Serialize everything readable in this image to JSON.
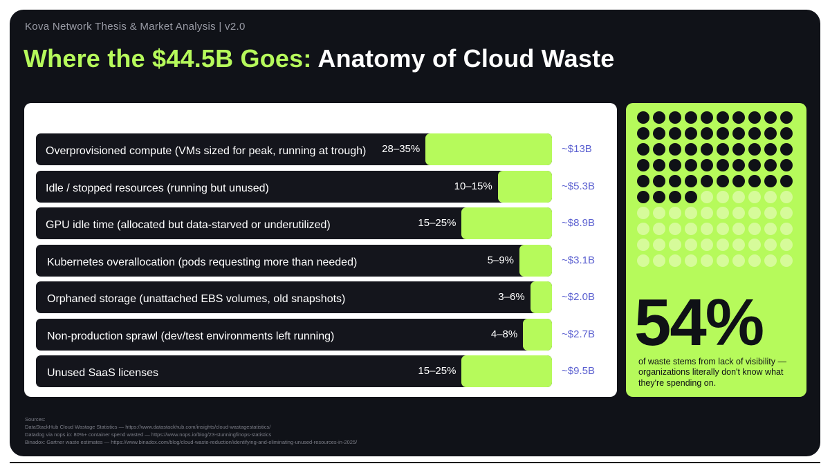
{
  "header": {
    "subtitle": "Kova Network Thesis & Market Analysis | v2.0",
    "title_accent": "Where the $44.5B Goes:",
    "title_main": "Anatomy of Cloud Waste"
  },
  "colors": {
    "background": "#101218",
    "accent": "#b6fa5b",
    "bar_track": "#14151c",
    "amount_text": "#5a5fd0"
  },
  "chart_data": {
    "type": "bar",
    "orientation": "horizontal",
    "categories": [
      "Overprovisioned compute (VMs sized for peak, running at trough)",
      "Idle / stopped resources (running but unused)",
      "GPU idle time (allocated but data-starved or underutilized)",
      "Kubernetes overallocation (pods requesting more than needed)",
      "Orphaned storage (unattached EBS volumes, old snapshots)",
      "Non-production sprawl (dev/test environments left running)",
      "Unused SaaS licenses"
    ],
    "percent_labels": [
      "28–35%",
      "10–15%",
      "15–25%",
      "5–9%",
      "3–6%",
      "4–8%",
      "15–25%"
    ],
    "percent_low": [
      28,
      10,
      15,
      5,
      3,
      4,
      15
    ],
    "percent_high": [
      35,
      15,
      25,
      9,
      6,
      8,
      25
    ],
    "amount_labels": [
      "~$13B",
      "~$5.3B",
      "~$8.9B",
      "~$3.1B",
      "~$2.0B",
      "~$2.7B",
      "~$9.5B"
    ],
    "amount_values_billion": [
      13,
      5.3,
      8.9,
      3.1,
      2.0,
      2.7,
      9.5
    ],
    "xlim": [
      0,
      100
    ]
  },
  "stat": {
    "value": "54%",
    "fraction": 0.54,
    "caption": "of waste stems from lack of visibility — organizations literally don't know what they're spending on."
  },
  "sources": {
    "heading": "Sources:",
    "lines": [
      "DataStackHub Cloud Wastage Statistics — https://www.datastackhub.com/insights/cloud-wastagestatistics/",
      "Datadog via nops.io: 80%+ container spend wasted — https://www.nops.io/blog/23-stunningfinops-statistics",
      "Binadox: Gartner waste estimates — https://www.binadox.com/blog/cloud-waste-reduction/identifying-and-eliminating-unused-resources-in-2025/"
    ]
  }
}
